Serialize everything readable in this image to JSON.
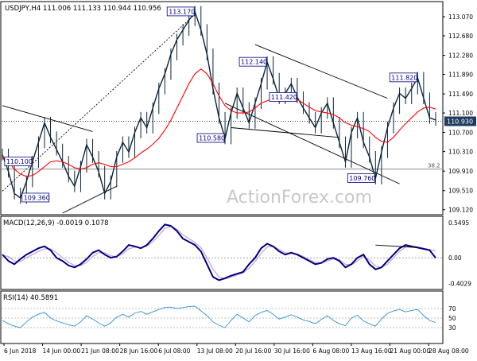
{
  "header": {
    "symbol_line": "USDJPY,H4   111.006 111.133 110.944 110.956",
    "macd_label": "MACD(12,26,9) -0.0019 0.1078",
    "rsi_label": "RSI(14) 40.5891",
    "watermark": "ActionForex.com"
  },
  "colors": {
    "price": "#0b2438",
    "ma": "#ff0000",
    "trendlines": "#000000",
    "fib": "#666666",
    "macd_main": "#000080",
    "macd_signal": "#c8a0c8",
    "rsi": "#2f8fd8",
    "annotation_border": "#000080",
    "annotation_text": "#000080",
    "current_price_box": "#1f3a5f"
  },
  "chart_data": [
    {
      "type": "line",
      "panel": "price",
      "symbol": "USDJPY",
      "timeframe": "H4",
      "ohlc": {
        "open": 111.006,
        "high": 111.133,
        "low": 110.944,
        "close": 110.956
      },
      "ylim": [
        109.05,
        113.25
      ],
      "y_ticks": [
        "113.070",
        "112.680",
        "112.280",
        "111.890",
        "111.490",
        "111.100",
        "110.700",
        "110.310",
        "109.910",
        "109.510",
        "109.120"
      ],
      "x_ticks": [
        "6 Jun 2018",
        "14 Jun 00:00",
        "21 Jun 08:00",
        "28 Jun 16:00",
        "6 Jul 08:00",
        "13 Jul 08:00",
        "20 Jul 16:00",
        "30 Jul 16:00",
        "6 Aug 08:00",
        "13 Aug 16:00",
        "21 Aug 00:00",
        "28 Aug 08:00"
      ],
      "current_price": "110.930",
      "fib_label": "38.2",
      "fib_level": 109.95,
      "series": [
        {
          "name": "",
          "values": [
            110.25,
            109.9,
            109.45,
            109.36,
            109.7,
            110.1,
            110.5,
            110.9,
            110.6,
            110.35,
            110.1,
            109.8,
            109.6,
            110.0,
            110.45,
            110.2,
            109.9,
            109.45,
            109.7,
            110.2,
            110.5,
            110.3,
            110.7,
            111.0,
            110.8,
            111.2,
            111.6,
            111.9,
            112.3,
            112.6,
            112.8,
            113.0,
            113.17,
            112.8,
            112.3,
            111.6,
            111.0,
            110.58,
            111.1,
            111.5,
            111.2,
            110.9,
            111.3,
            111.7,
            112.14,
            111.8,
            111.4,
            111.5,
            111.7,
            111.42,
            111.2,
            111.0,
            110.8,
            111.1,
            111.3,
            110.9,
            110.5,
            110.1,
            110.7,
            111.0,
            110.5,
            110.2,
            109.76,
            110.3,
            110.8,
            111.2,
            111.5,
            111.4,
            111.6,
            111.82,
            111.4,
            111.0,
            110.956
          ]
        },
        {
          "name": "",
          "values": [
            110.2,
            110.1,
            109.95,
            109.85,
            109.8,
            109.82,
            109.9,
            110.0,
            110.1,
            110.12,
            110.1,
            110.05,
            109.98,
            109.95,
            109.98,
            110.05,
            110.08,
            110.05,
            110.0,
            110.0,
            110.05,
            110.1,
            110.18,
            110.28,
            110.36,
            110.46,
            110.58,
            110.75,
            110.95,
            111.2,
            111.45,
            111.7,
            111.9,
            112.0,
            111.9,
            111.7,
            111.45,
            111.25,
            111.15,
            111.1,
            111.1,
            111.12,
            111.2,
            111.3,
            111.35,
            111.4,
            111.42,
            111.43,
            111.42,
            111.38,
            111.3,
            111.22,
            111.15,
            111.12,
            111.1,
            111.07,
            111.0,
            110.9,
            110.85,
            110.82,
            110.78,
            110.72,
            110.6,
            110.52,
            110.5,
            110.6,
            110.75,
            110.88,
            111.0,
            111.12,
            111.2,
            111.22,
            111.18
          ]
        }
      ],
      "annotations": [
        {
          "label": "113.170",
          "price": 113.17
        },
        {
          "label": "112.140",
          "price": 112.14
        },
        {
          "label": "111.820",
          "price": 111.82
        },
        {
          "label": "111.420",
          "price": 111.42
        },
        {
          "label": "110.580",
          "price": 110.58
        },
        {
          "label": "110.100",
          "price": 110.1
        },
        {
          "label": "109.760",
          "price": 109.76
        },
        {
          "label": "109.360",
          "price": 109.36
        }
      ]
    },
    {
      "type": "line",
      "panel": "macd",
      "title": "MACD(12,26,9) -0.0019 0.1078",
      "ylim": [
        -0.47,
        0.6
      ],
      "y_ticks": [
        "0.5495",
        "0.00",
        "-0.4029"
      ],
      "series": [
        {
          "name": "MACD",
          "values": [
            0.05,
            -0.05,
            -0.1,
            -0.02,
            0.05,
            0.1,
            0.15,
            0.18,
            0.12,
            0.0,
            -0.05,
            -0.12,
            -0.15,
            -0.1,
            -0.02,
            0.08,
            0.12,
            0.05,
            0.0,
            0.02,
            0.1,
            0.2,
            0.18,
            0.15,
            0.2,
            0.3,
            0.42,
            0.52,
            0.5,
            0.42,
            0.3,
            0.25,
            0.2,
            0.1,
            -0.1,
            -0.3,
            -0.35,
            -0.32,
            -0.28,
            -0.25,
            -0.22,
            -0.1,
            0.0,
            0.15,
            0.22,
            0.18,
            0.1,
            0.05,
            0.08,
            0.05,
            0.0,
            -0.05,
            -0.1,
            -0.08,
            -0.02,
            0.0,
            -0.05,
            -0.15,
            -0.1,
            0.0,
            0.05,
            -0.1,
            -0.18,
            -0.15,
            -0.05,
            0.05,
            0.15,
            0.2,
            0.18,
            0.16,
            0.14,
            0.12,
            -0.0019
          ]
        },
        {
          "name": "Signal",
          "values": [
            0.04,
            0.02,
            -0.05,
            -0.06,
            0.0,
            0.05,
            0.1,
            0.14,
            0.14,
            0.08,
            0.0,
            -0.07,
            -0.12,
            -0.12,
            -0.07,
            0.02,
            0.08,
            0.08,
            0.03,
            0.02,
            0.06,
            0.14,
            0.17,
            0.16,
            0.18,
            0.25,
            0.35,
            0.46,
            0.49,
            0.45,
            0.36,
            0.3,
            0.24,
            0.16,
            0.0,
            -0.18,
            -0.3,
            -0.33,
            -0.3,
            -0.27,
            -0.24,
            -0.16,
            -0.06,
            0.07,
            0.17,
            0.18,
            0.13,
            0.08,
            0.07,
            0.06,
            0.02,
            -0.03,
            -0.07,
            -0.08,
            -0.05,
            -0.02,
            -0.03,
            -0.1,
            -0.11,
            -0.05,
            0.02,
            -0.04,
            -0.13,
            -0.15,
            -0.1,
            0.0,
            0.1,
            0.17,
            0.18,
            0.17,
            0.15,
            0.13,
            0.1078
          ]
        }
      ]
    },
    {
      "type": "line",
      "panel": "rsi",
      "title": "RSI(14) 40.5891",
      "ylim": [
        0,
        100
      ],
      "y_ticks": [
        "70",
        "50",
        "30"
      ],
      "series": [
        {
          "name": "RSI(14)",
          "values": [
            45,
            38,
            33,
            30,
            42,
            52,
            58,
            62,
            50,
            44,
            40,
            36,
            33,
            42,
            55,
            48,
            40,
            33,
            40,
            52,
            58,
            52,
            60,
            64,
            58,
            63,
            68,
            72,
            73,
            70,
            72,
            74,
            75,
            65,
            55,
            42,
            35,
            30,
            45,
            58,
            50,
            42,
            55,
            62,
            66,
            58,
            48,
            52,
            57,
            52,
            46,
            43,
            38,
            47,
            55,
            45,
            38,
            34,
            50,
            56,
            44,
            38,
            33,
            48,
            60,
            65,
            68,
            63,
            66,
            68,
            55,
            45,
            40.5891
          ]
        }
      ]
    }
  ]
}
